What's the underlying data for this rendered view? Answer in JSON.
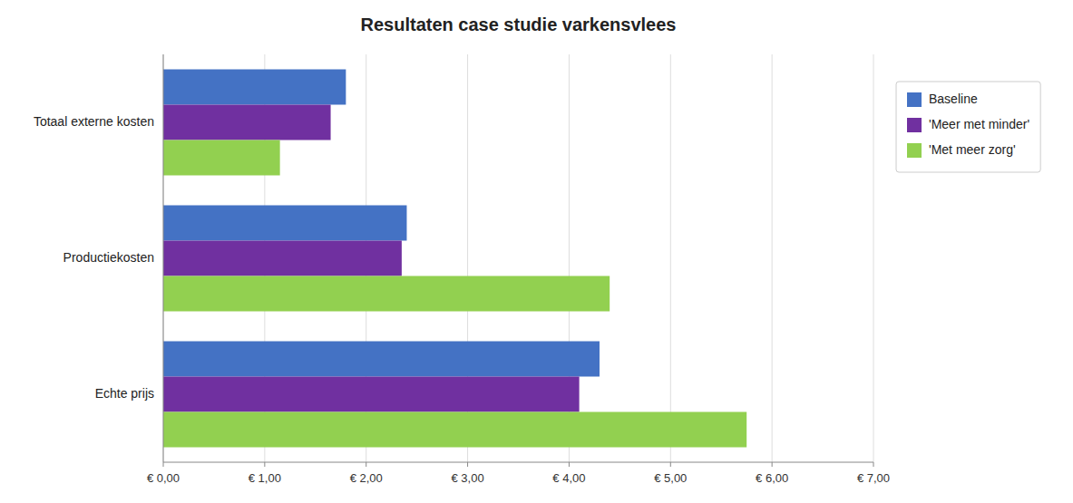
{
  "chart_data": {
    "type": "bar",
    "orientation": "horizontal",
    "title": "Resultaten case studie varkensvlees",
    "categories": [
      "Totaal externe kosten",
      "Productiekosten",
      "Echte prijs"
    ],
    "series": [
      {
        "name": "Baseline",
        "color": "#4472C4",
        "values": [
          1.8,
          2.4,
          4.3
        ]
      },
      {
        "name": "'Meer met minder'",
        "color": "#7030A0",
        "values": [
          1.65,
          2.35,
          4.1
        ]
      },
      {
        "name": "'Met meer zorg'",
        "color": "#92D050",
        "values": [
          1.15,
          4.4,
          5.75
        ]
      }
    ],
    "xlim": [
      0,
      7.0
    ],
    "xticks": [
      {
        "value": 0,
        "label": "€ 0,00"
      },
      {
        "value": 1,
        "label": "€ 1,00"
      },
      {
        "value": 2,
        "label": "€ 2,00"
      },
      {
        "value": 3,
        "label": "€ 3,00"
      },
      {
        "value": 4,
        "label": "€ 4,00"
      },
      {
        "value": 5,
        "label": "€ 5,00"
      },
      {
        "value": 6,
        "label": "€ 6,00"
      },
      {
        "value": 7,
        "label": "€ 7,00"
      }
    ],
    "grid": true,
    "legend": "right"
  }
}
